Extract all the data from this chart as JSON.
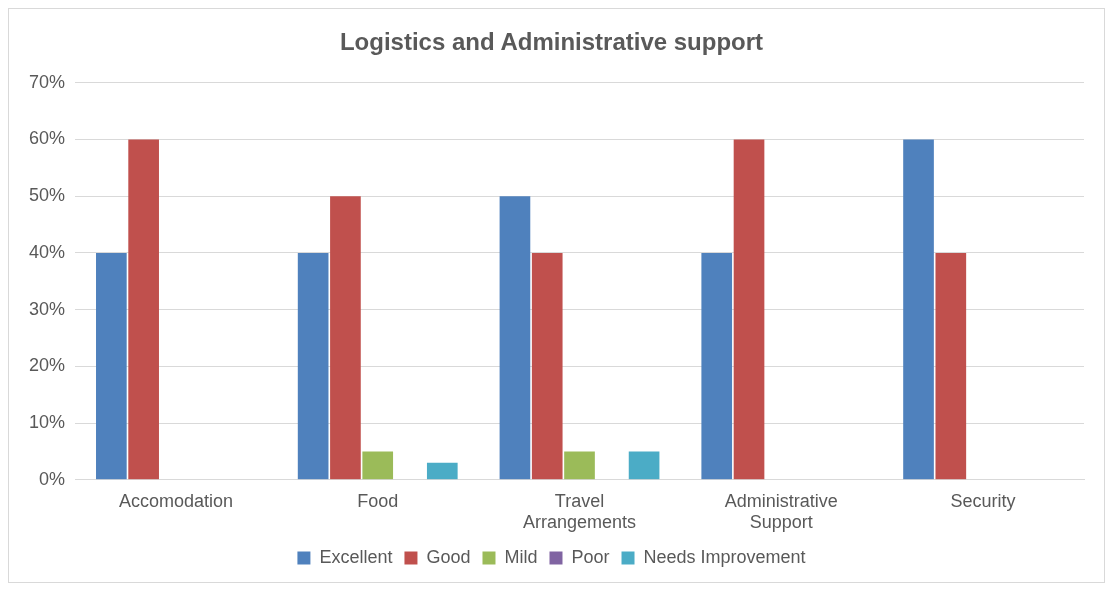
{
  "chart_data": {
    "type": "bar",
    "title": "Logistics and Administrative support",
    "categories": [
      "Accomodation",
      "Food",
      "Travel Arrangements",
      "Administrative Support",
      "Security"
    ],
    "series": [
      {
        "name": "Excellent",
        "color": "#4f81bd",
        "values": [
          40,
          40,
          50,
          40,
          60
        ]
      },
      {
        "name": "Good",
        "color": "#c0504d",
        "values": [
          60,
          50,
          40,
          60,
          40
        ]
      },
      {
        "name": "Mild",
        "color": "#9bbb59",
        "values": [
          0,
          5,
          5,
          0,
          0
        ]
      },
      {
        "name": "Poor",
        "color": "#8064a2",
        "values": [
          0,
          0,
          0,
          0,
          0
        ]
      },
      {
        "name": "Needs Improvement",
        "color": "#4bacc6",
        "values": [
          0,
          3,
          5,
          0,
          0
        ]
      }
    ],
    "ylim": [
      0,
      70
    ],
    "yticks": [
      {
        "value": 0,
        "label": "0%"
      },
      {
        "value": 10,
        "label": "10%"
      },
      {
        "value": 20,
        "label": "20%"
      },
      {
        "value": 30,
        "label": "30%"
      },
      {
        "value": 40,
        "label": "40%"
      },
      {
        "value": 50,
        "label": "50%"
      },
      {
        "value": 60,
        "label": "60%"
      },
      {
        "value": 70,
        "label": "70%"
      }
    ],
    "grid": "y",
    "legend": "bottom"
  }
}
